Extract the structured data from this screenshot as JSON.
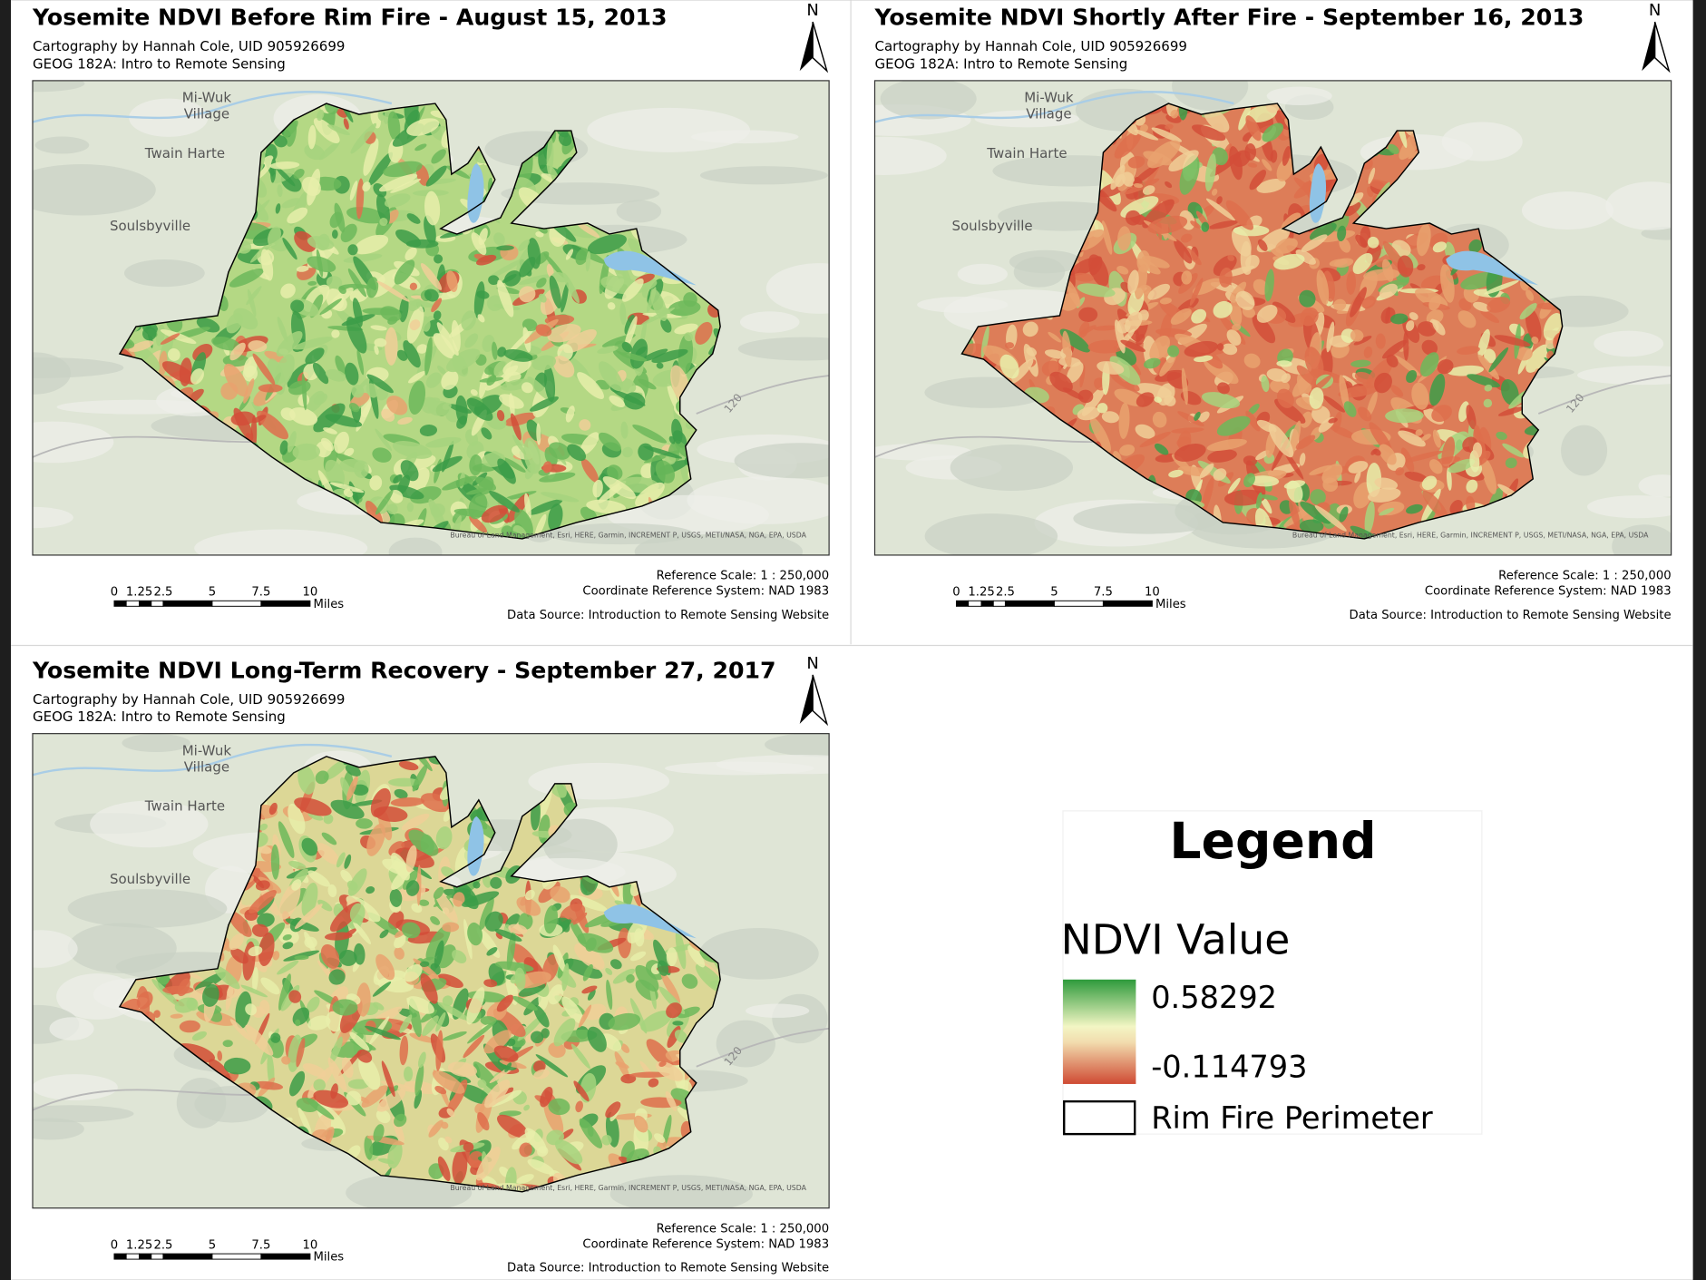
{
  "maps": [
    {
      "title": "Yosemite NDVI Before Rim Fire - August 15, 2013",
      "credit": "Cartography by Hannah Cole, UID 905926699",
      "course": "GEOG 182A: Intro to Remote Sensing",
      "north": "N",
      "places": [
        "Mi-Wuk",
        "Village",
        "Twain Harte",
        "Soulsbyville",
        "120"
      ],
      "attribution": "Bureau of Land Management, Esri, HERE, Garmin, INCREMENT P, USGS, METI/NASA, NGA, EPA, USDA",
      "scale_bar": {
        "ticks": [
          "0",
          "1.25",
          "2.5",
          "5",
          "7.5",
          "10"
        ],
        "unit": "Miles"
      },
      "reference_scale": "Reference Scale:  1 : 250,000",
      "crs": "Coordinate Reference System: NAD 1983",
      "data_source": "Data Source: Introduction to Remote Sensing Website"
    },
    {
      "title": "Yosemite NDVI Shortly After Fire - September 16, 2013",
      "credit": "Cartography by Hannah Cole, UID 905926699",
      "course": "GEOG 182A: Intro to Remote Sensing",
      "north": "N",
      "places": [
        "Mi-Wuk",
        "Village",
        "Twain Harte",
        "Soulsbyville",
        "120"
      ],
      "attribution": "Bureau of Land Management, Esri, HERE, Garmin, INCREMENT P, USGS, METI/NASA, NGA, EPA, USDA",
      "scale_bar": {
        "ticks": [
          "0",
          "1.25",
          "2.5",
          "5",
          "7.5",
          "10"
        ],
        "unit": "Miles"
      },
      "reference_scale": "Reference Scale:  1 : 250,000",
      "crs": "Coordinate Reference System: NAD 1983",
      "data_source": "Data Source: Introduction to Remote Sensing Website"
    },
    {
      "title": "Yosemite NDVI Long-Term Recovery - September 27, 2017",
      "credit": "Cartography by Hannah Cole, UID 905926699",
      "course": "GEOG 182A: Intro to Remote Sensing",
      "north": "N",
      "places": [
        "Mi-Wuk",
        "Village",
        "Twain Harte",
        "Soulsbyville",
        "120"
      ],
      "attribution": "Bureau of Land Management, Esri, HERE, Garmin, INCREMENT P, USGS, METI/NASA, NGA, EPA, USDA",
      "scale_bar": {
        "ticks": [
          "0",
          "1.25",
          "2.5",
          "5",
          "7.5",
          "10"
        ],
        "unit": "Miles"
      },
      "reference_scale": "Reference Scale:  1 : 250,000",
      "crs": "Coordinate Reference System: NAD 1983",
      "data_source": "Data Source: Introduction to Remote Sensing Website"
    }
  ],
  "legend": {
    "title": "Legend",
    "heading": "NDVI Value",
    "high": "0.58292",
    "low": "-0.114793",
    "perimeter": "Rim Fire Perimeter"
  }
}
